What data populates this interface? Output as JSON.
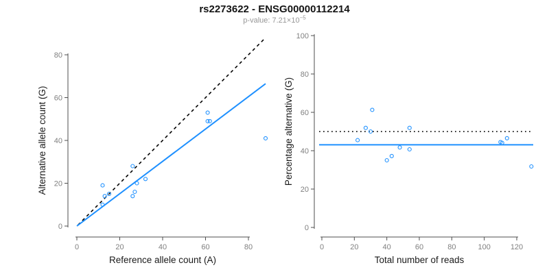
{
  "header": {
    "title": "rs2273622 - ENSG00000112214",
    "subtitle_base": "p-value: 7.21×10",
    "subtitle_exponent": "−5"
  },
  "colors": {
    "accent_blue": "#1E90FF",
    "line_black": "#000000",
    "axis_line": "#4d4d4d",
    "tick_label_gray": "#7f7f7f",
    "axis_title_color": "#1a1a1a",
    "subtitle_gray": "#969696"
  },
  "chart_data": [
    {
      "type": "scatter",
      "name": "allele-counts",
      "xlabel": "Reference allele count (A)",
      "ylabel": "Alternative allele count (G)",
      "xlim": [
        0,
        88
      ],
      "ylim": [
        0,
        88
      ],
      "xticks": [
        0,
        20,
        40,
        60,
        80
      ],
      "yticks": [
        0,
        20,
        40,
        60,
        80
      ],
      "grid": false,
      "legend": "none",
      "marker": "open-circle",
      "x": [
        12,
        13,
        15,
        12,
        26,
        27,
        28,
        32,
        26,
        61,
        62,
        61,
        88
      ],
      "y": [
        10,
        14,
        15,
        19,
        14,
        16,
        20,
        22,
        28,
        49,
        49,
        53,
        41
      ],
      "lines": [
        {
          "name": "identity-line",
          "style": "dashed",
          "color": "#000000",
          "from": [
            0.5,
            0.5
          ],
          "to": [
            87.5,
            87.5
          ]
        },
        {
          "name": "fit-line",
          "style": "solid",
          "color": "#1E90FF",
          "from": [
            0,
            0
          ],
          "to": [
            88,
            66.5
          ]
        }
      ]
    },
    {
      "type": "scatter",
      "name": "percentage-vs-reads",
      "xlabel": "Total number of reads",
      "ylabel": "Percentage alternative (G)",
      "xlim": [
        0,
        129
      ],
      "ylim": [
        0,
        100
      ],
      "xticks": [
        0,
        20,
        40,
        60,
        80,
        100,
        120
      ],
      "yticks": [
        0,
        20,
        40,
        60,
        80,
        100
      ],
      "grid": false,
      "legend": "none",
      "marker": "open-circle",
      "x": [
        22,
        27,
        30,
        31,
        40,
        43,
        48,
        54,
        54,
        110,
        111,
        114,
        129
      ],
      "y": [
        45.5,
        51.9,
        50,
        61.3,
        35,
        37.2,
        41.7,
        40.7,
        51.9,
        44.5,
        44.1,
        46.5,
        31.8
      ],
      "lines": [
        {
          "name": "expected-50pct-line",
          "style": "dotted",
          "color": "#000000",
          "hline": 50
        },
        {
          "name": "mean-percentage-line",
          "style": "solid",
          "color": "#1E90FF",
          "hline": 43.1
        }
      ]
    }
  ]
}
